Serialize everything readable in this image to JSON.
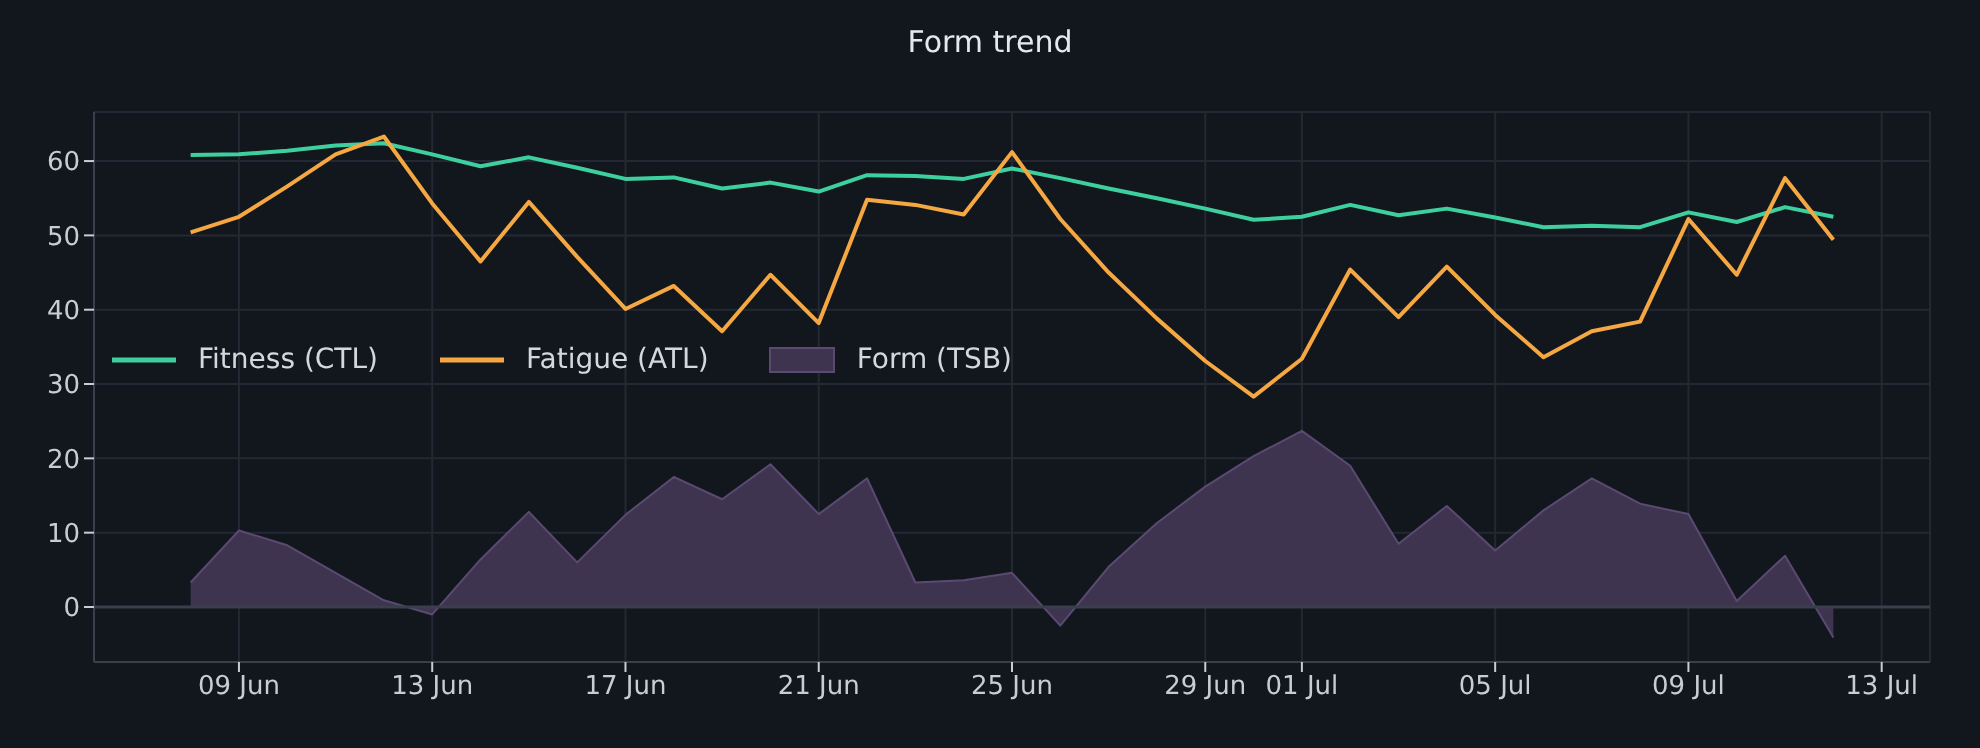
{
  "chart_data": {
    "type": "line",
    "title": "Form trend",
    "x": [
      "--06-08",
      "--06-09",
      "--06-10",
      "--06-11",
      "--06-12",
      "--06-13",
      "--06-14",
      "--06-15",
      "--06-16",
      "--06-17",
      "--06-18",
      "--06-19",
      "--06-20",
      "--06-21",
      "--06-22",
      "--06-23",
      "--06-24",
      "--06-25",
      "--06-26",
      "--06-27",
      "--06-28",
      "--06-29",
      "--06-30",
      "--07-01",
      "--07-02",
      "--07-03",
      "--07-04",
      "--07-05",
      "--07-06",
      "--07-07",
      "--07-08",
      "--07-09",
      "--07-10",
      "--07-11",
      "--07-12"
    ],
    "series": [
      {
        "name": "Fitness (CTL)",
        "color": "#3ecf9e",
        "values": [
          60.8,
          60.9,
          61.4,
          62.1,
          62.4,
          60.9,
          59.3,
          60.5,
          59.1,
          57.6,
          57.8,
          56.3,
          57.1,
          55.9,
          58.1,
          58.0,
          57.6,
          59.0,
          57.7,
          56.3,
          55.0,
          53.6,
          52.1,
          52.5,
          54.1,
          52.7,
          53.6,
          52.4,
          51.1,
          51.3,
          51.1,
          53.1,
          51.8,
          53.8,
          52.5
        ]
      },
      {
        "name": "Fatigue (ATL)",
        "color": "#f5a742",
        "values": [
          50.4,
          52.5,
          56.6,
          60.9,
          63.3,
          54.3,
          46.5,
          54.5,
          47.1,
          40.1,
          43.2,
          37.1,
          44.7,
          38.2,
          54.8,
          54.1,
          52.8,
          61.2,
          52.2,
          45.0,
          38.8,
          33.1,
          28.3,
          33.4,
          45.4,
          39.0,
          45.8,
          39.3,
          33.6,
          37.1,
          38.4,
          52.2,
          44.7,
          57.7,
          49.4
        ]
      },
      {
        "name": "Form (TSB)",
        "type": "area",
        "color": "#3f3450",
        "values": [
          3.3,
          10.3,
          8.3,
          4.6,
          0.9,
          -1.0,
          6.4,
          12.8,
          6.0,
          12.4,
          17.5,
          14.5,
          19.2,
          12.5,
          17.3,
          3.3,
          3.6,
          4.6,
          -2.5,
          5.4,
          11.3,
          16.2,
          20.3,
          23.7,
          19.0,
          8.5,
          13.6,
          7.6,
          13.0,
          17.3,
          13.9,
          12.5,
          0.8,
          6.9,
          -4.1
        ]
      }
    ],
    "xlim": [
      "--06-06",
      "--07-14"
    ],
    "xticks": [
      {
        "value": "--06-09",
        "label": "09 Jun"
      },
      {
        "value": "--06-13",
        "label": "13 Jun"
      },
      {
        "value": "--06-17",
        "label": "17 Jun"
      },
      {
        "value": "--06-21",
        "label": "21 Jun"
      },
      {
        "value": "--06-25",
        "label": "25 Jun"
      },
      {
        "value": "--06-29",
        "label": "29 Jun"
      },
      {
        "value": "--07-01",
        "label": "01 Jul"
      },
      {
        "value": "--07-05",
        "label": "05 Jul"
      },
      {
        "value": "--07-09",
        "label": "09 Jul"
      },
      {
        "value": "--07-13",
        "label": "13 Jul"
      }
    ],
    "ylim": [
      -7.4,
      66.6
    ],
    "yticks": [
      0,
      10,
      20,
      30,
      40,
      50,
      60
    ],
    "ref_lines": [
      {
        "axis": "y",
        "value": 0,
        "color": "#3a3f4d"
      }
    ],
    "grid": true,
    "legend": "center left",
    "marker": "none",
    "line_style": "solid"
  }
}
